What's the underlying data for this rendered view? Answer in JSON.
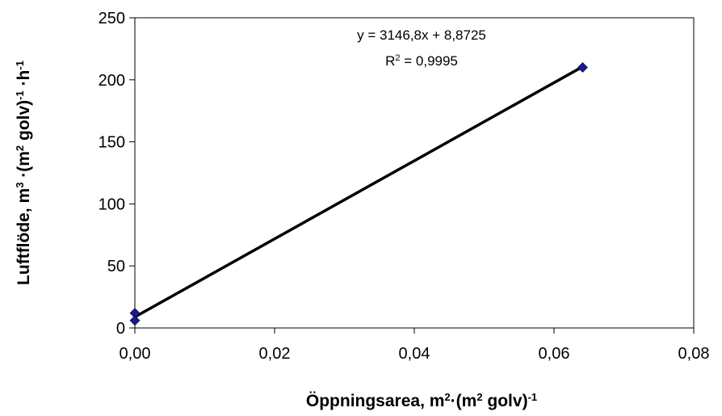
{
  "chart_data": {
    "type": "scatter",
    "x": [
      0.0,
      0.0,
      0.0641
    ],
    "y": [
      12,
      6,
      210
    ],
    "xlim": [
      0,
      0.08
    ],
    "ylim": [
      0,
      250
    ],
    "xticks": [
      0,
      0.02,
      0.04,
      0.06,
      0.08
    ],
    "yticks": [
      0,
      50,
      100,
      150,
      200,
      250
    ],
    "xtick_labels": [
      "0,00",
      "0,02",
      "0,04",
      "0,06",
      "0,08"
    ],
    "ytick_labels": [
      "0",
      "50",
      "100",
      "150",
      "200",
      "250"
    ],
    "xlabel": {
      "main": "Öppningsarea, m",
      "sup1": "2",
      "mid": "·(m",
      "sup2": "2",
      "end": " golv)",
      "sup3": "-1"
    },
    "ylabel": {
      "main": "Luftflöde, m",
      "sup1": "3",
      "mid": " ·(m",
      "sup2": "2",
      "mid2": " golv)",
      "sup3": "-1",
      "mid3": " ·h",
      "sup4": "-1"
    },
    "trendline": {
      "slope": 3146.8,
      "intercept": 8.8725,
      "equation": "y = 3146,8x + 8,8725",
      "r2_prefix": "R",
      "r2_sup": "2",
      "r2_value": " = 0,9995"
    },
    "grid": false,
    "marker_color": "#1a1a8c",
    "line_color": "#000000"
  }
}
